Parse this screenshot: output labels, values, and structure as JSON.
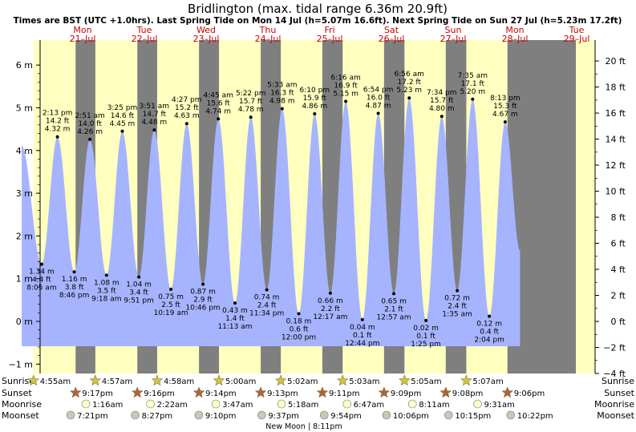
{
  "title": "Bridlington (max. tidal range 6.36m 20.9ft)",
  "subtitle": "Times are BST (UTC +1.0hrs). Last Spring Tide on Mon 14 Jul (h=5.07m 16.6ft). Next Spring Tide on Sun 27 Jul (h=5.23m 17.2ft)",
  "colors": {
    "night": "#7f7f7f",
    "day": "#ffffc0",
    "tide": "#a6b4ff",
    "weekday": "#cc0000",
    "sunrise_star": "#cfc43c",
    "sunset_star": "#b0643c",
    "moonrise": "#ffffc8",
    "moonset": "#c8c8b4"
  },
  "days": [
    {
      "name": "Mon",
      "date": "21–Jul"
    },
    {
      "name": "Tue",
      "date": "22–Jul"
    },
    {
      "name": "Wed",
      "date": "23–Jul"
    },
    {
      "name": "Thu",
      "date": "24–Jul"
    },
    {
      "name": "Fri",
      "date": "25–Jul"
    },
    {
      "name": "Sat",
      "date": "26–Jul"
    },
    {
      "name": "Sun",
      "date": "27–Jul"
    },
    {
      "name": "Mon",
      "date": "28–Jul"
    },
    {
      "name": "Tue",
      "date": "29–Jul"
    }
  ],
  "row_labels": [
    "Sunrise",
    "Sunset",
    "Moonrise",
    "Moonset"
  ],
  "almanac": {
    "sunrise": [
      "4:55am",
      "4:57am",
      "4:58am",
      "5:00am",
      "5:02am",
      "5:03am",
      "5:05am",
      "5:07am"
    ],
    "sunset": [
      "9:17pm",
      "9:16pm",
      "9:14pm",
      "9:13pm",
      "9:11pm",
      "9:09pm",
      "9:08pm",
      "9:06pm"
    ],
    "moonrise": [
      "1:16am",
      "2:22am",
      "3:47am",
      "5:18am",
      "6:47am",
      "8:11am",
      "9:31am"
    ],
    "moonset": [
      "7:21pm",
      "8:27pm",
      "9:10pm",
      "9:37pm",
      "9:54pm",
      "10:06pm",
      "10:15pm",
      "10:22pm"
    ],
    "moon_phase": "New Moon | 8:11pm"
  },
  "chart_data": {
    "type": "area",
    "title": "Bridlington (max. tidal range 6.36m 20.9ft)",
    "x_units": "hours from 00:00 Mon 21 Jul (BST)",
    "y_left": {
      "unit": "m",
      "range": [
        -1.2,
        6.5
      ],
      "ticks": [
        -1,
        0,
        1,
        2,
        3,
        4,
        5,
        6
      ],
      "tick_labels": [
        "−1 m",
        "0 m",
        "1 m",
        "2 m",
        "3 m",
        "4 m",
        "5 m",
        "6 m"
      ]
    },
    "y_right": {
      "unit": "ft",
      "ticks": [
        -4,
        -2,
        0,
        2,
        4,
        6,
        8,
        10,
        12,
        14,
        16,
        18,
        20
      ],
      "tick_labels": [
        "−4 ft",
        "−2 ft",
        "0 ft",
        "2 ft",
        "4 ft",
        "6 ft",
        "8 ft",
        "10 ft",
        "12 ft",
        "14 ft",
        "16 ft",
        "18 ft",
        "20 ft"
      ]
    },
    "series_start": {
      "hour": 0.3,
      "height_m": 4.12
    },
    "series_end": {
      "hour": 194,
      "height_m": 1.65
    },
    "extremes": [
      {
        "hour": 8.08,
        "m": "1.34 m",
        "ft": "4.4 ft",
        "time": "8:05 am",
        "type": "low"
      },
      {
        "hour": 14.22,
        "m": "4.32 m",
        "ft": "14.2 ft",
        "time": "2:13 pm",
        "type": "high"
      },
      {
        "hour": 20.77,
        "m": "1.16 m",
        "ft": "3.8 ft",
        "time": "8:46 pm",
        "type": "low"
      },
      {
        "hour": 26.85,
        "m": "4.26 m",
        "ft": "14.0 ft",
        "time": "2:51 am",
        "type": "high"
      },
      {
        "hour": 33.3,
        "m": "1.08 m",
        "ft": "3.5 ft",
        "time": "9:18 am",
        "type": "low"
      },
      {
        "hour": 39.42,
        "m": "4.45 m",
        "ft": "14.6 ft",
        "time": "3:25 pm",
        "type": "high"
      },
      {
        "hour": 45.85,
        "m": "1.04 m",
        "ft": "3.4 ft",
        "time": "9:51 pm",
        "type": "low"
      },
      {
        "hour": 51.85,
        "m": "4.48 m",
        "ft": "14.7 ft",
        "time": "3:51 am",
        "type": "high"
      },
      {
        "hour": 58.32,
        "m": "0.75 m",
        "ft": "2.5 ft",
        "time": "10:19 am",
        "type": "low"
      },
      {
        "hour": 64.45,
        "m": "4.63 m",
        "ft": "15.2 ft",
        "time": "4:27 pm",
        "type": "high"
      },
      {
        "hour": 70.77,
        "m": "0.87 m",
        "ft": "2.9 ft",
        "time": "10:46 pm",
        "type": "low"
      },
      {
        "hour": 76.75,
        "m": "4.74 m",
        "ft": "15.6 ft",
        "time": "4:45 am",
        "type": "high"
      },
      {
        "hour": 83.22,
        "m": "0.43 m",
        "ft": "1.4 ft",
        "time": "11:13 am",
        "type": "low"
      },
      {
        "hour": 89.37,
        "m": "4.78 m",
        "ft": "15.7 ft",
        "time": "5:22 pm",
        "type": "high"
      },
      {
        "hour": 95.57,
        "m": "0.74 m",
        "ft": "2.4 ft",
        "time": "11:34 pm",
        "type": "low"
      },
      {
        "hour": 101.55,
        "m": "4.98 m",
        "ft": "16.3 ft",
        "time": "5:33 am",
        "type": "high"
      },
      {
        "hour": 108.0,
        "m": "0.18 m",
        "ft": "0.6 ft",
        "time": "12:00 pm",
        "type": "low"
      },
      {
        "hour": 114.17,
        "m": "4.86 m",
        "ft": "15.9 ft",
        "time": "6:10 pm",
        "type": "high"
      },
      {
        "hour": 120.28,
        "m": "0.66 m",
        "ft": "2.2 ft",
        "time": "12:17 am",
        "type": "low"
      },
      {
        "hour": 126.27,
        "m": "5.15 m",
        "ft": "16.9 ft",
        "time": "6:16 am",
        "type": "high"
      },
      {
        "hour": 132.73,
        "m": "0.04 m",
        "ft": "0.1 ft",
        "time": "12:44 pm",
        "type": "low"
      },
      {
        "hour": 138.9,
        "m": "4.87 m",
        "ft": "16.0 ft",
        "time": "6:54 pm",
        "type": "high"
      },
      {
        "hour": 144.95,
        "m": "0.65 m",
        "ft": "2.1 ft",
        "time": "12:57 am",
        "type": "low"
      },
      {
        "hour": 150.93,
        "m": "5.23 m",
        "ft": "17.2 ft",
        "time": "6:56 am",
        "type": "high"
      },
      {
        "hour": 157.42,
        "m": "0.02 m",
        "ft": "0.1 ft",
        "time": "1:25 pm",
        "type": "low"
      },
      {
        "hour": 163.57,
        "m": "4.80 m",
        "ft": "15.7 ft",
        "time": "7:34 pm",
        "type": "high"
      },
      {
        "hour": 169.58,
        "m": "0.72 m",
        "ft": "2.4 ft",
        "time": "1:35 am",
        "type": "low"
      },
      {
        "hour": 175.58,
        "m": "5.20 m",
        "ft": "17.1 ft",
        "time": "7:35 am",
        "type": "high"
      },
      {
        "hour": 182.07,
        "m": "0.12 m",
        "ft": "0.4 ft",
        "time": "2:04 pm",
        "type": "low"
      },
      {
        "hour": 188.22,
        "m": "4.67 m",
        "ft": "15.3 ft",
        "time": "8:13 pm",
        "type": "high"
      }
    ],
    "sunrise_hours": [
      4.92,
      28.95,
      52.97,
      77.0,
      101.03,
      125.05,
      149.08,
      173.12
    ],
    "sunset_hours": [
      21.28,
      45.27,
      69.23,
      93.22,
      117.18,
      141.15,
      165.13,
      189.1
    ],
    "moonrise_hours": [
      25.27,
      50.37,
      75.78,
      101.3,
      126.78,
      152.18,
      177.52
    ],
    "moonset_hours": [
      19.35,
      44.45,
      69.17,
      93.62,
      117.9,
      142.1,
      166.25,
      190.37
    ],
    "grid": false,
    "legend": "none"
  }
}
